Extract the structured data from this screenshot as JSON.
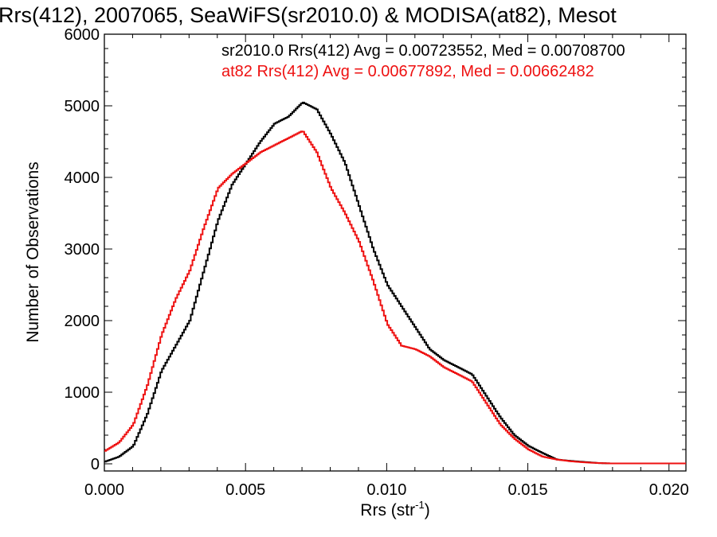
{
  "chart_data": {
    "type": "line",
    "title": "Rrs(412), 2007065, SeaWiFS(sr2010.0) & MODISA(at82), Mesot",
    "xlabel": "Rrs (str",
    "xlabel_sup": "-1",
    "xlabel_close": ")",
    "ylabel": "Number of Observations",
    "xlim": [
      0.0,
      0.0206
    ],
    "ylim": [
      -100,
      6000
    ],
    "xticks": [
      0.0,
      0.005,
      0.01,
      0.015,
      0.02
    ],
    "xtick_labels": [
      "0.000",
      "0.005",
      "0.010",
      "0.015",
      "0.020"
    ],
    "yticks": [
      0,
      1000,
      2000,
      3000,
      4000,
      5000,
      6000
    ],
    "ytick_labels": [
      "0",
      "1000",
      "2000",
      "3000",
      "4000",
      "5000",
      "6000"
    ],
    "grid": false,
    "legend_position": "top-right",
    "series": [
      {
        "name": "sr2010.0 Rrs(412) Avg = 0.00723552, Med = 0.00708700",
        "color": "#000000",
        "x": [
          0.0,
          0.0005,
          0.001,
          0.0015,
          0.002,
          0.0025,
          0.003,
          0.0035,
          0.004,
          0.0045,
          0.005,
          0.0055,
          0.006,
          0.0065,
          0.007,
          0.0075,
          0.008,
          0.0085,
          0.009,
          0.0095,
          0.01,
          0.0105,
          0.011,
          0.0115,
          0.012,
          0.0125,
          0.013,
          0.0135,
          0.014,
          0.0145,
          0.015,
          0.0155,
          0.016,
          0.0165,
          0.017,
          0.0175,
          0.018,
          0.0185,
          0.019,
          0.0195,
          0.02,
          0.0205
        ],
        "y": [
          30,
          100,
          250,
          700,
          1300,
          1650,
          2000,
          2700,
          3400,
          3900,
          4200,
          4500,
          4750,
          4850,
          5050,
          4950,
          4600,
          4200,
          3600,
          3000,
          2500,
          2200,
          1900,
          1600,
          1450,
          1350,
          1250,
          950,
          650,
          400,
          250,
          150,
          60,
          40,
          25,
          10,
          5,
          5,
          5,
          5,
          5,
          5
        ]
      },
      {
        "name": "at82 Rrs(412) Avg = 0.00677892, Med = 0.00662482",
        "color": "#ee1111",
        "x": [
          0.0,
          0.0005,
          0.001,
          0.0015,
          0.002,
          0.0025,
          0.003,
          0.0035,
          0.004,
          0.0045,
          0.005,
          0.0055,
          0.006,
          0.0065,
          0.007,
          0.0075,
          0.008,
          0.0085,
          0.009,
          0.0095,
          0.01,
          0.0105,
          0.011,
          0.0115,
          0.012,
          0.0125,
          0.013,
          0.0135,
          0.014,
          0.0145,
          0.015,
          0.0155,
          0.016,
          0.0165,
          0.017,
          0.0175,
          0.018,
          0.0185,
          0.019,
          0.0195,
          0.02,
          0.0205
        ],
        "y": [
          180,
          300,
          550,
          1100,
          1800,
          2300,
          2700,
          3300,
          3850,
          4050,
          4200,
          4350,
          4450,
          4550,
          4650,
          4350,
          3850,
          3500,
          3100,
          2550,
          1950,
          1650,
          1600,
          1500,
          1350,
          1250,
          1150,
          850,
          550,
          350,
          200,
          100,
          60,
          35,
          20,
          10,
          5,
          5,
          5,
          5,
          5,
          5
        ]
      }
    ]
  }
}
